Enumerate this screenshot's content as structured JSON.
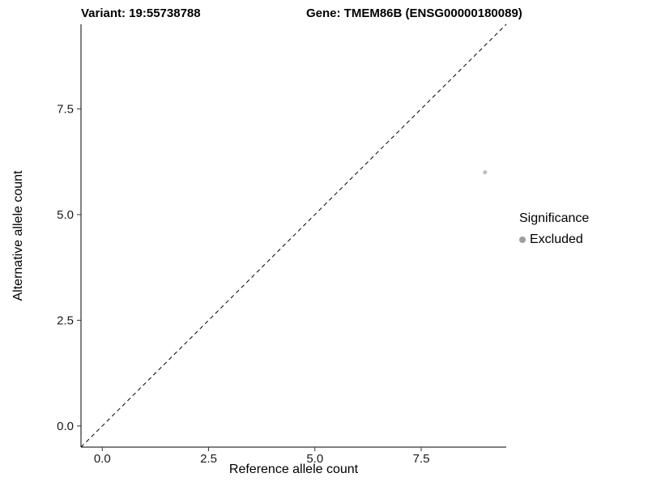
{
  "chart_data": {
    "type": "scatter",
    "title_left": "Variant: 19:55738788",
    "title_right": "Gene: TMEM86B (ENSG00000180089)",
    "xlabel": "Reference allele count",
    "ylabel": "Alternative allele count",
    "xlim": [
      -0.5,
      9.5
    ],
    "ylim": [
      -0.5,
      9.5
    ],
    "x_ticks": [
      0.0,
      2.5,
      5.0,
      7.5
    ],
    "y_ticks": [
      0.0,
      2.5,
      5.0,
      7.5
    ],
    "x_tick_labels": [
      "0.0",
      "2.5",
      "5.0",
      "7.5"
    ],
    "y_tick_labels": [
      "0.0",
      "2.5",
      "5.0",
      "7.5"
    ],
    "grid": false,
    "reference_line": {
      "style": "dashed",
      "from": [
        -0.5,
        -0.5
      ],
      "to": [
        9.5,
        9.5
      ],
      "color": "#000000"
    },
    "points": [
      {
        "x": 9,
        "y": 6,
        "series": "Excluded"
      }
    ],
    "series_colors": {
      "Excluded": "#bdbdbd"
    },
    "colors": {
      "axis": "#000000",
      "tick_label": "#1a1a1a",
      "background": "#ffffff"
    },
    "legend": {
      "title": "Significance",
      "position": "right",
      "items": [
        {
          "label": "Excluded",
          "color": "#9e9e9e"
        }
      ]
    }
  }
}
